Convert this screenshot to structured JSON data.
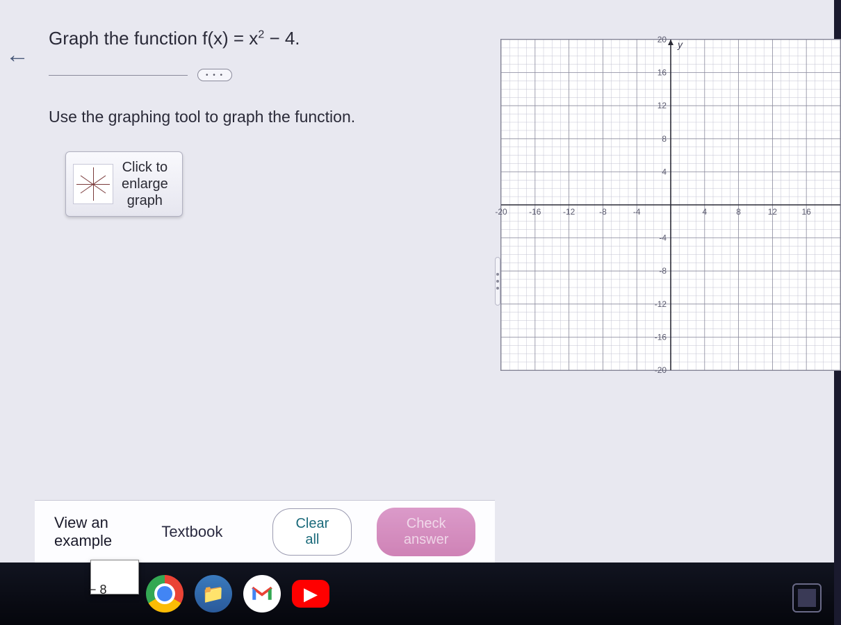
{
  "question": {
    "prefix": "Graph the function f(x) = x",
    "exponent": "2",
    "suffix": " − 4."
  },
  "instruction": "Use the graphing tool to graph the function.",
  "enlarge": {
    "line1": "Click to",
    "line2": "enlarge",
    "line3": "graph"
  },
  "ellipsis": "• • •",
  "graph": {
    "type": "grid",
    "xlim": [
      -20,
      20
    ],
    "ylim": [
      -20,
      20
    ],
    "major_step": 4,
    "minor_step": 1,
    "y_axis_label": "y",
    "x_ticks": [
      -20,
      -16,
      -12,
      -8,
      -4,
      4,
      8,
      12,
      16
    ],
    "y_ticks_pos": [
      20,
      16,
      12,
      8,
      4
    ],
    "y_ticks_neg": [
      -4,
      -8,
      -12,
      -16,
      -20
    ],
    "background_color": "#ffffff",
    "minor_grid_color": "#c2c2d2",
    "major_grid_color": "#8a8a9c",
    "axis_color": "#2a2a36",
    "tick_label_color": "#5a5a6e"
  },
  "bottom": {
    "view_example": "View an example",
    "textbook": "Textbook",
    "clear_all": "Clear all",
    "check_answer": "Check answer"
  },
  "taskbar": {
    "thumb_label": "− 8"
  },
  "colors": {
    "page_bg": "#e8e8f0",
    "text": "#2a2a38",
    "check_btn_bg": "#c764a3",
    "clear_btn_text": "#1a6a7a"
  }
}
